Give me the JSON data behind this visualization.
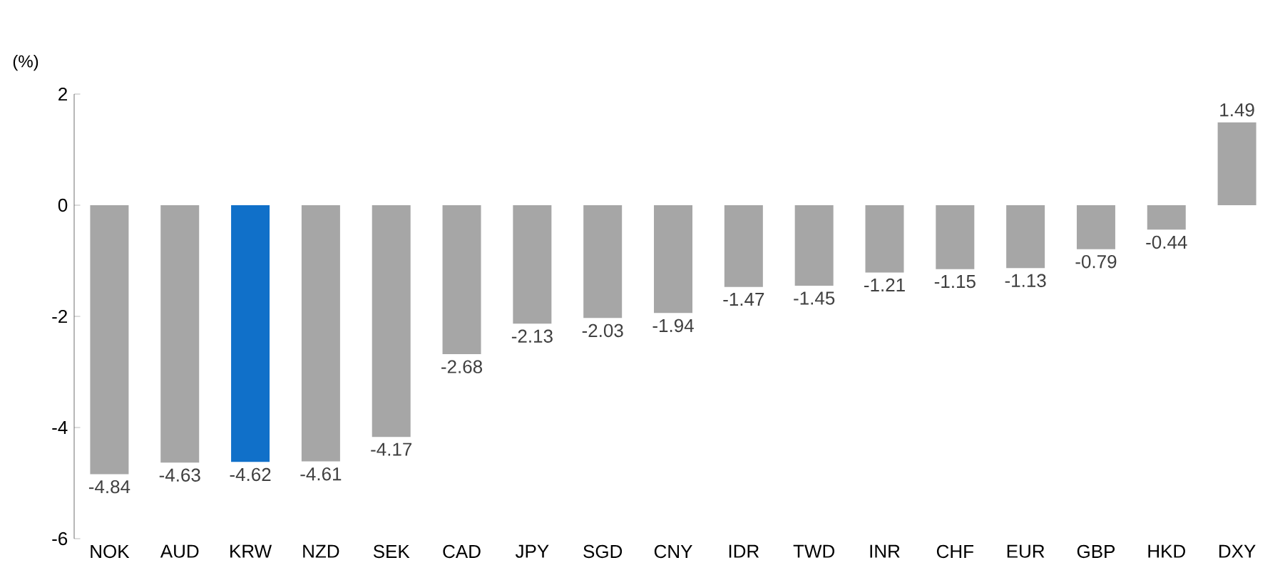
{
  "chart_data": {
    "type": "bar",
    "ylabel": "(%)",
    "categories": [
      "NOK",
      "AUD",
      "KRW",
      "NZD",
      "SEK",
      "CAD",
      "JPY",
      "SGD",
      "CNY",
      "IDR",
      "TWD",
      "INR",
      "CHF",
      "EUR",
      "GBP",
      "HKD",
      "DXY"
    ],
    "values": [
      -4.84,
      -4.63,
      -4.62,
      -4.61,
      -4.17,
      -2.68,
      -2.13,
      -2.03,
      -1.94,
      -1.47,
      -1.45,
      -1.21,
      -1.15,
      -1.13,
      -0.79,
      -0.44,
      1.49
    ],
    "colors": [
      "#a6a6a6",
      "#a6a6a6",
      "#1070c9",
      "#a6a6a6",
      "#a6a6a6",
      "#a6a6a6",
      "#a6a6a6",
      "#a6a6a6",
      "#a6a6a6",
      "#a6a6a6",
      "#a6a6a6",
      "#a6a6a6",
      "#a6a6a6",
      "#a6a6a6",
      "#a6a6a6",
      "#a6a6a6",
      "#a6a6a6"
    ],
    "ylim": [
      -6,
      2
    ],
    "yticks": [
      -6,
      -4,
      -2,
      0,
      2
    ],
    "data_labels": true,
    "grid": false
  }
}
